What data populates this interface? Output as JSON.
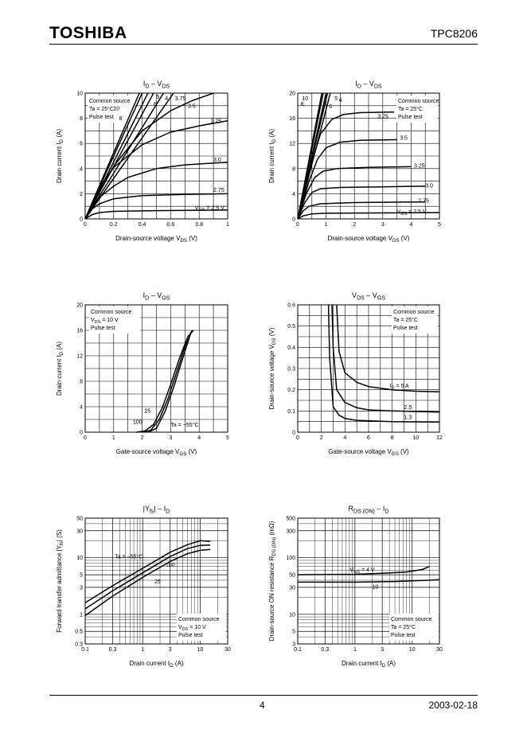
{
  "header": {
    "logo": "TOSHIBA",
    "part_number": "TPC8206"
  },
  "footer": {
    "page": "4",
    "date": "2003-02-18"
  },
  "chart_data": [
    {
      "id": "c1",
      "type": "line",
      "title": "I_D – V_DS",
      "xlabel": "Drain-source voltage  V_DS   (V)",
      "ylabel": "Drain current   I_D   (A)",
      "xlim": [
        0,
        1
      ],
      "ylim": [
        0,
        10
      ],
      "xscale": "linear",
      "yscale": "linear",
      "xticks": [
        0,
        0.2,
        0.4,
        0.6,
        0.8,
        1
      ],
      "yticks": [
        0,
        2,
        4,
        6,
        8,
        10
      ],
      "xminor": 0.1,
      "yminor": 1,
      "info": [
        "Common source",
        "Ta = 25°C",
        "Pulse test"
      ],
      "series": [
        {
          "label": "10",
          "points": [
            [
              0,
              0
            ],
            [
              0.38,
              10
            ]
          ]
        },
        {
          "label": "8",
          "points": [
            [
              0,
              0
            ],
            [
              0.4,
              10
            ]
          ]
        },
        {
          "label": "6",
          "points": [
            [
              0,
              0
            ],
            [
              0.44,
              10
            ]
          ]
        },
        {
          "label": "5",
          "points": [
            [
              0,
              0
            ],
            [
              0.48,
              10
            ]
          ]
        },
        {
          "label": "4",
          "points": [
            [
              0,
              0
            ],
            [
              0.55,
              10
            ]
          ]
        },
        {
          "label": "3.75",
          "points": [
            [
              0,
              0
            ],
            [
              0.62,
              10
            ]
          ]
        },
        {
          "label": "3.5",
          "points": [
            [
              0,
              0
            ],
            [
              0.2,
              4.2
            ],
            [
              0.4,
              7.0
            ],
            [
              0.6,
              8.6
            ],
            [
              0.75,
              9.4
            ],
            [
              0.9,
              10
            ]
          ]
        },
        {
          "label": "3.25",
          "points": [
            [
              0,
              0
            ],
            [
              0.1,
              2.5
            ],
            [
              0.2,
              4.1
            ],
            [
              0.4,
              5.9
            ],
            [
              0.6,
              6.9
            ],
            [
              0.8,
              7.4
            ],
            [
              1,
              7.8
            ]
          ]
        },
        {
          "label": "3.0",
          "points": [
            [
              0,
              0
            ],
            [
              0.1,
              1.7
            ],
            [
              0.2,
              2.6
            ],
            [
              0.3,
              3.3
            ],
            [
              0.5,
              4.0
            ],
            [
              0.7,
              4.3
            ],
            [
              1,
              4.5
            ]
          ]
        },
        {
          "label": "2.75",
          "points": [
            [
              0,
              0
            ],
            [
              0.05,
              0.8
            ],
            [
              0.1,
              1.2
            ],
            [
              0.2,
              1.6
            ],
            [
              0.4,
              1.85
            ],
            [
              0.7,
              1.95
            ],
            [
              1,
              2.0
            ]
          ]
        },
        {
          "label": "V_GS = 2.5 V",
          "points": [
            [
              0,
              0
            ],
            [
              0.05,
              0.35
            ],
            [
              0.1,
              0.5
            ],
            [
              0.2,
              0.6
            ],
            [
              0.5,
              0.66
            ],
            [
              1,
              0.7
            ]
          ]
        }
      ]
    },
    {
      "id": "c2",
      "type": "line",
      "title": "I_D – V_DS",
      "xlabel": "Drain-source voltage  V_DS   (V)",
      "ylabel": "Drain current   I_D   (A)",
      "xlim": [
        0,
        5
      ],
      "ylim": [
        0,
        20
      ],
      "xscale": "linear",
      "yscale": "linear",
      "xticks": [
        0,
        1,
        2,
        3,
        4,
        5
      ],
      "yticks": [
        0,
        4,
        8,
        12,
        16,
        20
      ],
      "xminor": 0.5,
      "yminor": 2,
      "info": [
        "Common source",
        "Ta = 25°C",
        "Pulse test"
      ],
      "series": [
        {
          "label": "10",
          "points": [
            [
              0,
              0
            ],
            [
              0.85,
              20
            ]
          ]
        },
        {
          "label": "8",
          "points": [
            [
              0,
              0
            ],
            [
              0.9,
              20
            ]
          ]
        },
        {
          "label": "6",
          "points": [
            [
              0,
              0
            ],
            [
              1.0,
              20
            ]
          ]
        },
        {
          "label": "5",
          "points": [
            [
              0,
              0
            ],
            [
              1.05,
              20
            ]
          ]
        },
        {
          "label": "4",
          "points": [
            [
              0,
              0
            ],
            [
              1.15,
              20
            ]
          ]
        },
        {
          "label": "3.75",
          "points": [
            [
              0,
              0
            ],
            [
              0.5,
              9
            ],
            [
              0.8,
              13.5
            ],
            [
              1.2,
              15.8
            ],
            [
              1.6,
              16.6
            ],
            [
              2.2,
              16.9
            ],
            [
              3.4,
              17
            ]
          ]
        },
        {
          "label": "3.5",
          "points": [
            [
              0,
              0
            ],
            [
              0.4,
              6
            ],
            [
              0.7,
              9.5
            ],
            [
              1.0,
              11.3
            ],
            [
              1.5,
              12.2
            ],
            [
              2.2,
              12.5
            ],
            [
              3.5,
              12.6
            ]
          ]
        },
        {
          "label": "3.25",
          "points": [
            [
              0,
              0
            ],
            [
              0.3,
              4
            ],
            [
              0.6,
              6.6
            ],
            [
              0.9,
              7.6
            ],
            [
              1.4,
              8.0
            ],
            [
              2.5,
              8.2
            ],
            [
              4.0,
              8.3
            ]
          ]
        },
        {
          "label": "3.0",
          "points": [
            [
              0,
              0
            ],
            [
              0.25,
              2.6
            ],
            [
              0.5,
              4.2
            ],
            [
              0.8,
              4.8
            ],
            [
              1.5,
              5.0
            ],
            [
              3,
              5.1
            ],
            [
              4.5,
              5.2
            ]
          ]
        },
        {
          "label": "2.75",
          "points": [
            [
              0,
              0
            ],
            [
              0.2,
              1.3
            ],
            [
              0.4,
              2.0
            ],
            [
              0.8,
              2.4
            ],
            [
              2,
              2.6
            ],
            [
              4.5,
              2.7
            ]
          ]
        },
        {
          "label": "V_GS = 2.5 V",
          "points": [
            [
              0,
              0
            ],
            [
              0.2,
              0.5
            ],
            [
              0.5,
              0.8
            ],
            [
              1,
              0.9
            ],
            [
              3,
              0.95
            ],
            [
              5,
              1.0
            ]
          ]
        }
      ]
    },
    {
      "id": "c3",
      "type": "line",
      "title": "I_D – V_GS",
      "xlabel": "Gate-source voltage   V_GS   (V)",
      "ylabel": "Drain current   I_D   (A)",
      "xlim": [
        0,
        5
      ],
      "ylim": [
        0,
        20
      ],
      "xscale": "linear",
      "yscale": "linear",
      "xticks": [
        0,
        1,
        2,
        3,
        4,
        5
      ],
      "yticks": [
        0,
        4,
        8,
        12,
        16,
        20
      ],
      "xminor": 0.5,
      "yminor": 2,
      "info": [
        "Common source",
        "V_DS = 10 V",
        "Pulse test"
      ],
      "series": [
        {
          "label": "100",
          "points": [
            [
              1.8,
              0
            ],
            [
              2.1,
              0.2
            ],
            [
              2.4,
              1.2
            ],
            [
              2.7,
              3.8
            ],
            [
              3.0,
              7.5
            ],
            [
              3.3,
              11.5
            ],
            [
              3.6,
              15
            ],
            [
              3.8,
              16
            ]
          ]
        },
        {
          "label": "25",
          "points": [
            [
              2.0,
              0
            ],
            [
              2.3,
              0.3
            ],
            [
              2.6,
              2.0
            ],
            [
              2.9,
              5.2
            ],
            [
              3.2,
              9.3
            ],
            [
              3.5,
              13.4
            ],
            [
              3.75,
              16
            ]
          ]
        },
        {
          "label": "Ta = −55°C",
          "points": [
            [
              2.2,
              0
            ],
            [
              2.5,
              0.6
            ],
            [
              2.8,
              3.2
            ],
            [
              3.1,
              7.0
            ],
            [
              3.4,
              11.3
            ],
            [
              3.7,
              15.5
            ],
            [
              3.75,
              16
            ]
          ]
        }
      ]
    },
    {
      "id": "c4",
      "type": "line",
      "title": "V_DS – V_GS",
      "xlabel": "Gate-source voltage   V_GS   (V)",
      "ylabel": "Drain-source voltage   V_DS   (V)",
      "xlim": [
        0,
        12
      ],
      "ylim": [
        0,
        0.6
      ],
      "xscale": "linear",
      "yscale": "linear",
      "xticks": [
        0,
        2,
        4,
        6,
        8,
        10,
        12
      ],
      "yticks": [
        0,
        0.1,
        0.2,
        0.3,
        0.4,
        0.5,
        0.6
      ],
      "xminor": 1,
      "yminor": 0.05,
      "info": [
        "Common source",
        "Ta = 25°C",
        "Pulse test"
      ],
      "series": [
        {
          "label": "I_D = 5 A",
          "points": [
            [
              3.3,
              0.6
            ],
            [
              3.5,
              0.38
            ],
            [
              4,
              0.28
            ],
            [
              5,
              0.235
            ],
            [
              6,
              0.215
            ],
            [
              8,
              0.2
            ],
            [
              10,
              0.193
            ],
            [
              12,
              0.19
            ]
          ]
        },
        {
          "label": "2.5",
          "points": [
            [
              2.9,
              0.6
            ],
            [
              3.0,
              0.4
            ],
            [
              3.3,
              0.2
            ],
            [
              4,
              0.14
            ],
            [
              5,
              0.115
            ],
            [
              6,
              0.105
            ],
            [
              8,
              0.1
            ],
            [
              12,
              0.095
            ]
          ]
        },
        {
          "label": "1.3",
          "points": [
            [
              2.6,
              0.6
            ],
            [
              2.7,
              0.35
            ],
            [
              3,
              0.12
            ],
            [
              3.5,
              0.08
            ],
            [
              4,
              0.065
            ],
            [
              5,
              0.056
            ],
            [
              8,
              0.05
            ],
            [
              12,
              0.048
            ]
          ]
        }
      ]
    },
    {
      "id": "c5",
      "type": "line",
      "title": "|Y_fs| – I_D",
      "xlabel": "Drain current   I_D   (A)",
      "ylabel": "Forward transfer admittance   |Y_fs|   (S)",
      "xlim": [
        0.1,
        30
      ],
      "ylim": [
        0.3,
        50
      ],
      "xscale": "log",
      "yscale": "log",
      "xticks": [
        0.1,
        0.3,
        1,
        3,
        10,
        30
      ],
      "yticks": [
        0.3,
        0.5,
        1,
        3,
        5,
        10,
        30,
        50
      ],
      "info": [
        "Common source",
        "V_DS = 10 V",
        "Pulse test"
      ],
      "series": [
        {
          "label": "Ta = −55°C",
          "points": [
            [
              0.1,
              1.6
            ],
            [
              0.3,
              3.2
            ],
            [
              1,
              6.5
            ],
            [
              3,
              12.5
            ],
            [
              6,
              17
            ],
            [
              10,
              20
            ],
            [
              15,
              19.5
            ]
          ]
        },
        {
          "label": "100",
          "points": [
            [
              0.1,
              1.25
            ],
            [
              0.3,
              2.6
            ],
            [
              1,
              5.4
            ],
            [
              3,
              10.5
            ],
            [
              6,
              14.5
            ],
            [
              10,
              16.5
            ],
            [
              15,
              16.8
            ]
          ]
        },
        {
          "label": "25",
          "points": [
            [
              0.1,
              0.95
            ],
            [
              0.3,
              2.1
            ],
            [
              1,
              4.5
            ],
            [
              3,
              8.6
            ],
            [
              6,
              11.8
            ],
            [
              10,
              13.5
            ],
            [
              15,
              14
            ]
          ]
        }
      ]
    },
    {
      "id": "c6",
      "type": "line",
      "title": "R_DS (ON) – I_D",
      "xlabel": "Drain current   I_D   (A)",
      "ylabel": "Drain-source ON resistance   R_DS (ON)   (mΩ)",
      "xlim": [
        0.1,
        30
      ],
      "ylim": [
        3,
        500
      ],
      "xscale": "log",
      "yscale": "log",
      "xticks": [
        0.1,
        0.3,
        1,
        3,
        10,
        30
      ],
      "yticks": [
        3,
        5,
        10,
        30,
        50,
        100,
        300,
        500
      ],
      "info": [
        "Common source",
        "Ta = 25°C",
        "Pulse test"
      ],
      "series": [
        {
          "label": "V_GS = 4 V",
          "points": [
            [
              0.1,
              50
            ],
            [
              1,
              51
            ],
            [
              3,
              53
            ],
            [
              8,
              56
            ],
            [
              15,
              62
            ],
            [
              20,
              70
            ]
          ]
        },
        {
          "label": "10",
          "points": [
            [
              0.1,
              37
            ],
            [
              1,
              37
            ],
            [
              5,
              38
            ],
            [
              10,
              39
            ],
            [
              20,
              40
            ],
            [
              30,
              41
            ]
          ]
        }
      ]
    }
  ]
}
